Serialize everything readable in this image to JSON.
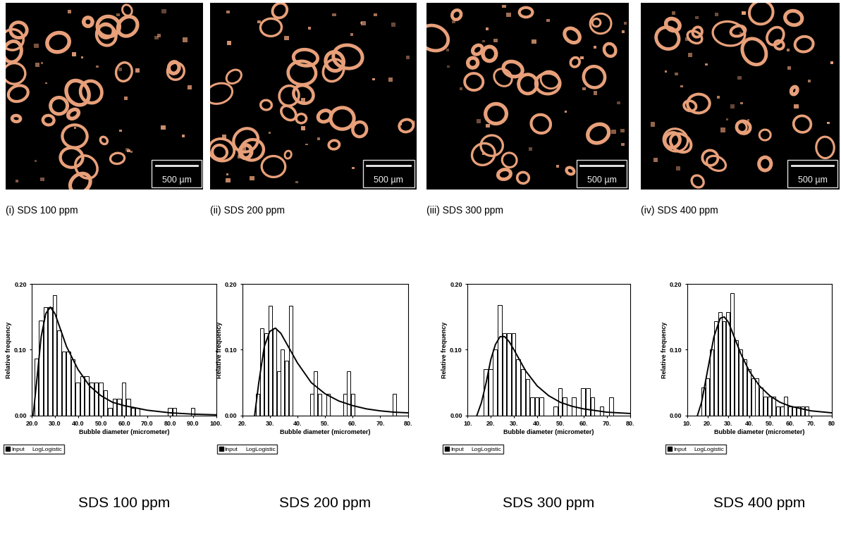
{
  "images": [
    {
      "caption": "(i) SDS 100 ppm",
      "scale_bar": "500 µm"
    },
    {
      "caption": "(ii) SDS 200 ppm",
      "scale_bar": "500 µm"
    },
    {
      "caption": "(iii) SDS 300 ppm",
      "scale_bar": "500 µm"
    },
    {
      "caption": "(iv) SDS 400 ppm",
      "scale_bar": "500 µm"
    }
  ],
  "chart_data": [
    {
      "type": "histogram",
      "caption": "SDS 100 ppm",
      "x_label": "Bubble diameter (micrometer)",
      "y_label": "Relative frequency",
      "xlim": [
        20,
        100
      ],
      "xticks": [
        {
          "value": 20,
          "label": "20.0"
        },
        {
          "value": 30,
          "label": "30.0"
        },
        {
          "value": 40,
          "label": "40.0"
        },
        {
          "value": 50,
          "label": "50.0"
        },
        {
          "value": 60,
          "label": "60.0"
        },
        {
          "value": 70,
          "label": "70.0"
        },
        {
          "value": 80,
          "label": "80.0"
        },
        {
          "value": 90,
          "label": "90.0"
        },
        {
          "value": 100,
          "label": "100."
        }
      ],
      "ylim": [
        0,
        0.2
      ],
      "yticks": [
        {
          "value": 0,
          "label": "0.00"
        },
        {
          "value": 0.1,
          "label": "0.10"
        },
        {
          "value": 0.2,
          "label": "0.20"
        }
      ],
      "legend": "upper left",
      "series": [
        {
          "name": "Input",
          "type": "histogram",
          "color": "#ffffff",
          "bins": [
            21,
            23,
            25,
            27,
            29,
            31,
            33,
            35,
            37,
            39,
            41,
            43,
            45,
            47,
            49,
            51,
            53,
            55,
            57,
            59,
            61,
            63,
            65,
            67,
            69,
            71,
            73,
            75,
            77,
            79,
            81,
            83,
            85,
            87,
            89,
            91
          ],
          "values": [
            0.087,
            0.145,
            0.165,
            0.165,
            0.183,
            0.13,
            0.097,
            0.097,
            0.086,
            0.05,
            0.06,
            0.06,
            0.05,
            0.05,
            0.05,
            0.038,
            0.012,
            0.025,
            0.025,
            0.05,
            0.025,
            0.012,
            0.012,
            0,
            0,
            0,
            0,
            0,
            0,
            0.012,
            0.012,
            0,
            0,
            0,
            0.012
          ]
        },
        {
          "name": "LogLogistic",
          "type": "line",
          "color": "#000000",
          "x": [
            20.5,
            22,
            24,
            26,
            28,
            30,
            32,
            35,
            40,
            45,
            50,
            55,
            60,
            70,
            80,
            90,
            100
          ],
          "values": [
            0,
            0.05,
            0.12,
            0.155,
            0.165,
            0.155,
            0.135,
            0.105,
            0.07,
            0.045,
            0.03,
            0.02,
            0.015,
            0.008,
            0.004,
            0.002,
            0.001
          ]
        }
      ]
    },
    {
      "type": "histogram",
      "caption": "SDS 200 ppm",
      "x_label": "Bubble diameter (micrometer)",
      "y_label": "Relative frequency",
      "xlim": [
        20,
        80
      ],
      "xticks": [
        {
          "value": 20,
          "label": "20."
        },
        {
          "value": 30,
          "label": "30."
        },
        {
          "value": 40,
          "label": "40."
        },
        {
          "value": 50,
          "label": "50."
        },
        {
          "value": 60,
          "label": "60."
        },
        {
          "value": 70,
          "label": "70."
        },
        {
          "value": 80,
          "label": "80."
        }
      ],
      "ylim": [
        0,
        0.2
      ],
      "yticks": [
        {
          "value": 0,
          "label": "0.00"
        },
        {
          "value": 0.1,
          "label": "0.10"
        },
        {
          "value": 0.2,
          "label": "0.20"
        }
      ],
      "legend": "upper left",
      "series": [
        {
          "name": "Input",
          "type": "histogram",
          "color": "#ffffff",
          "bins": [
            25,
            26.5,
            28,
            29.5,
            31,
            32.5,
            34,
            35.5,
            37,
            38.5,
            40,
            41.5,
            43,
            44.5,
            46,
            47.5,
            49,
            50.5,
            52,
            53.5,
            55,
            56.5,
            58,
            59.5,
            61,
            62.5,
            64,
            65.5,
            67,
            68.5,
            70,
            71.5,
            73,
            74.5,
            76
          ],
          "values": [
            0.033,
            0.133,
            0.125,
            0.167,
            0.133,
            0.067,
            0.1,
            0.083,
            0.167,
            0,
            0,
            0,
            0,
            0.033,
            0.067,
            0.033,
            0,
            0.033,
            0,
            0,
            0,
            0.033,
            0.067,
            0.033,
            0,
            0,
            0,
            0,
            0,
            0,
            0,
            0,
            0,
            0.033
          ]
        },
        {
          "name": "LogLogistic",
          "type": "line",
          "color": "#000000",
          "x": [
            24.5,
            26,
            28,
            30,
            32,
            34,
            36,
            38,
            40,
            45,
            50,
            55,
            60,
            65,
            70,
            75,
            80
          ],
          "values": [
            0,
            0.05,
            0.105,
            0.128,
            0.133,
            0.125,
            0.11,
            0.095,
            0.08,
            0.05,
            0.033,
            0.022,
            0.015,
            0.01,
            0.007,
            0.005,
            0.004
          ]
        }
      ]
    },
    {
      "type": "histogram",
      "caption": "SDS 300 ppm",
      "x_label": "Bubble diameter (micrometer)",
      "y_label": "Relative frequency",
      "xlim": [
        10,
        80
      ],
      "xticks": [
        {
          "value": 10,
          "label": "10."
        },
        {
          "value": 20,
          "label": "20."
        },
        {
          "value": 30,
          "label": "30."
        },
        {
          "value": 40,
          "label": "40."
        },
        {
          "value": 50,
          "label": "50."
        },
        {
          "value": 60,
          "label": "60."
        },
        {
          "value": 70,
          "label": "70."
        },
        {
          "value": 80,
          "label": "80."
        }
      ],
      "ylim": [
        0,
        0.2
      ],
      "yticks": [
        {
          "value": 0,
          "label": "0.00"
        },
        {
          "value": 0.1,
          "label": "0.10"
        },
        {
          "value": 0.2,
          "label": "0.20"
        }
      ],
      "legend": "upper left",
      "series": [
        {
          "name": "Input",
          "type": "histogram",
          "color": "#ffffff",
          "bins": [
            17,
            19,
            21,
            23,
            25,
            27,
            29,
            31,
            33,
            35,
            37,
            39,
            41,
            43,
            45,
            47,
            49,
            51,
            53,
            55,
            57,
            59,
            61,
            63,
            65,
            67,
            69,
            71,
            73
          ],
          "values": [
            0.07,
            0.07,
            0.1,
            0.168,
            0.125,
            0.125,
            0.125,
            0.085,
            0.07,
            0.056,
            0.028,
            0.028,
            0.028,
            0,
            0,
            0.014,
            0.042,
            0.028,
            0,
            0.028,
            0,
            0.042,
            0.042,
            0.028,
            0,
            0.014,
            0,
            0.028
          ]
        },
        {
          "name": "LogLogistic",
          "type": "line",
          "color": "#000000",
          "x": [
            14,
            16,
            18,
            20,
            22,
            24,
            26,
            28,
            30,
            35,
            40,
            45,
            50,
            55,
            60,
            70,
            80
          ],
          "values": [
            0,
            0.02,
            0.05,
            0.085,
            0.108,
            0.12,
            0.12,
            0.112,
            0.1,
            0.068,
            0.045,
            0.03,
            0.02,
            0.014,
            0.01,
            0.005,
            0.003
          ]
        }
      ]
    },
    {
      "type": "histogram",
      "caption": "SDS 400 ppm",
      "x_label": "Bubble diameter (micrometer)",
      "y_label": "Relative frequency",
      "xlim": [
        10,
        80
      ],
      "xticks": [
        {
          "value": 10,
          "label": "10."
        },
        {
          "value": 20,
          "label": "20."
        },
        {
          "value": 30,
          "label": "30."
        },
        {
          "value": 40,
          "label": "40."
        },
        {
          "value": 50,
          "label": "50."
        },
        {
          "value": 60,
          "label": "60."
        },
        {
          "value": 70,
          "label": "70."
        },
        80
      ],
      "ylim": [
        0,
        0.2
      ],
      "yticks": [
        {
          "value": 0,
          "label": "0.00"
        },
        {
          "value": 0.1,
          "label": "0.10"
        },
        {
          "value": 0.2,
          "label": "0.20"
        }
      ],
      "legend": "upper left",
      "series": [
        {
          "name": "Input",
          "type": "histogram",
          "color": "#ffffff",
          "bins": [
            17,
            19,
            21,
            23,
            25,
            27,
            29,
            31,
            33,
            35,
            37,
            39,
            41,
            43,
            45,
            47,
            49,
            51,
            53,
            55,
            57,
            59,
            61,
            63,
            65,
            67,
            69
          ],
          "values": [
            0.043,
            0.057,
            0.1,
            0.143,
            0.157,
            0.143,
            0.157,
            0.186,
            0.114,
            0.1,
            0.086,
            0.071,
            0.057,
            0.057,
            0.043,
            0.029,
            0.029,
            0.029,
            0.014,
            0.014,
            0.029,
            0.014,
            0.014,
            0.014,
            0.014,
            0.014
          ]
        },
        {
          "name": "LogLogistic",
          "type": "line",
          "color": "#000000",
          "x": [
            15,
            17,
            20,
            23,
            26,
            28,
            30,
            33,
            36,
            40,
            45,
            50,
            55,
            60,
            70,
            80
          ],
          "values": [
            0,
            0.02,
            0.07,
            0.12,
            0.148,
            0.15,
            0.142,
            0.118,
            0.094,
            0.068,
            0.045,
            0.03,
            0.02,
            0.014,
            0.007,
            0.004
          ]
        }
      ]
    }
  ]
}
